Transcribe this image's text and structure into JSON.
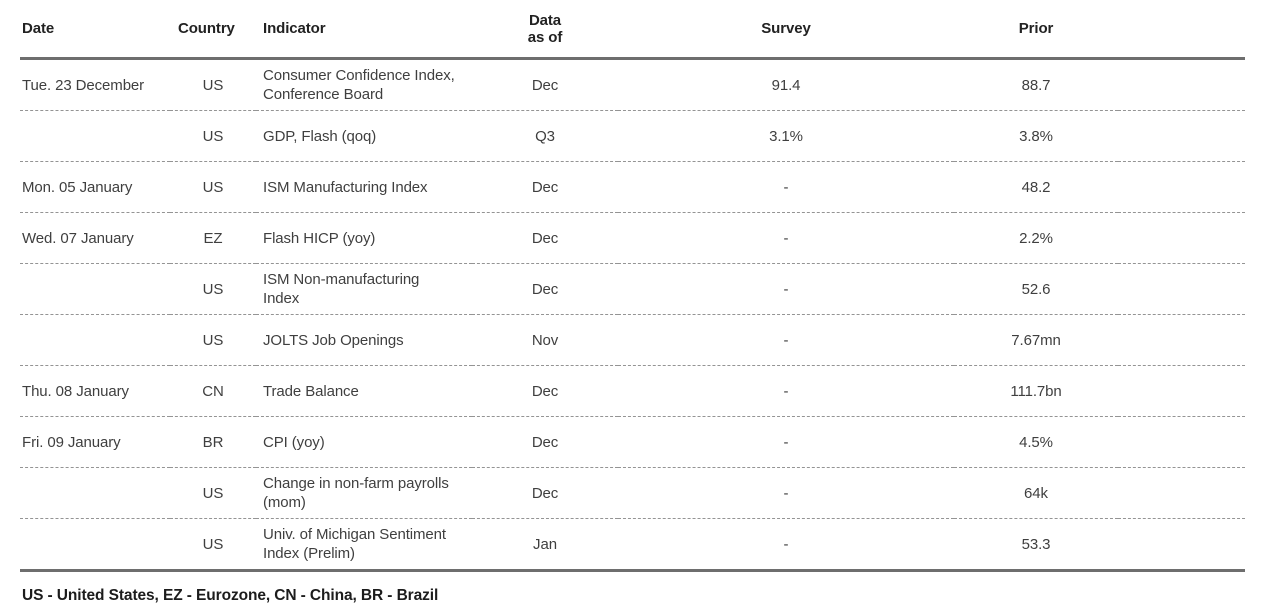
{
  "table": {
    "columns": [
      {
        "key": "date",
        "label": "Date"
      },
      {
        "key": "country",
        "label": "Country"
      },
      {
        "key": "indicator",
        "label": "Indicator"
      },
      {
        "key": "data_as_of",
        "label": "Data as of"
      },
      {
        "key": "survey",
        "label": "Survey"
      },
      {
        "key": "prior",
        "label": "Prior"
      }
    ],
    "rows": [
      {
        "date": "Tue. 23 December",
        "country": "US",
        "indicator": "Consumer Confidence Index, Conference Board",
        "data_as_of": "Dec",
        "survey": "91.4",
        "prior": "88.7"
      },
      {
        "date": "",
        "country": "US",
        "indicator": "GDP, Flash (qoq)",
        "data_as_of": "Q3",
        "survey": "3.1%",
        "prior": "3.8%"
      },
      {
        "date": "Mon. 05 January",
        "country": "US",
        "indicator": "ISM Manufacturing Index",
        "data_as_of": "Dec",
        "survey": "-",
        "prior": "48.2"
      },
      {
        "date": "Wed. 07 January",
        "country": "EZ",
        "indicator": "Flash HICP (yoy)",
        "data_as_of": "Dec",
        "survey": "-",
        "prior": "2.2%"
      },
      {
        "date": "",
        "country": "US",
        "indicator": "ISM Non-manufacturing Index",
        "data_as_of": "Dec",
        "survey": "-",
        "prior": "52.6"
      },
      {
        "date": "",
        "country": "US",
        "indicator": "JOLTS Job Openings",
        "data_as_of": "Nov",
        "survey": "-",
        "prior": "7.67mn"
      },
      {
        "date": "Thu. 08 January",
        "country": "CN",
        "indicator": "Trade Balance",
        "data_as_of": "Dec",
        "survey": "-",
        "prior": "111.7bn"
      },
      {
        "date": "Fri. 09 January",
        "country": "BR",
        "indicator": "CPI (yoy)",
        "data_as_of": "Dec",
        "survey": "-",
        "prior": "4.5%"
      },
      {
        "date": "",
        "country": "US",
        "indicator": "Change in non-farm payrolls (mom)",
        "data_as_of": "Dec",
        "survey": "-",
        "prior": "64k"
      },
      {
        "date": "",
        "country": "US",
        "indicator": "Univ. of Michigan Sentiment Index (Prelim)",
        "data_as_of": "Jan",
        "survey": "-",
        "prior": "53.3"
      }
    ],
    "footnote": "US - United States, EZ - Eurozone, CN - China, BR - Brazil"
  },
  "colors": {
    "heavy_rule": "#6e6e6e",
    "row_rule": "#949494",
    "header_text": "#222222",
    "cell_text": "#3f3f3f",
    "background": "#ffffff"
  }
}
